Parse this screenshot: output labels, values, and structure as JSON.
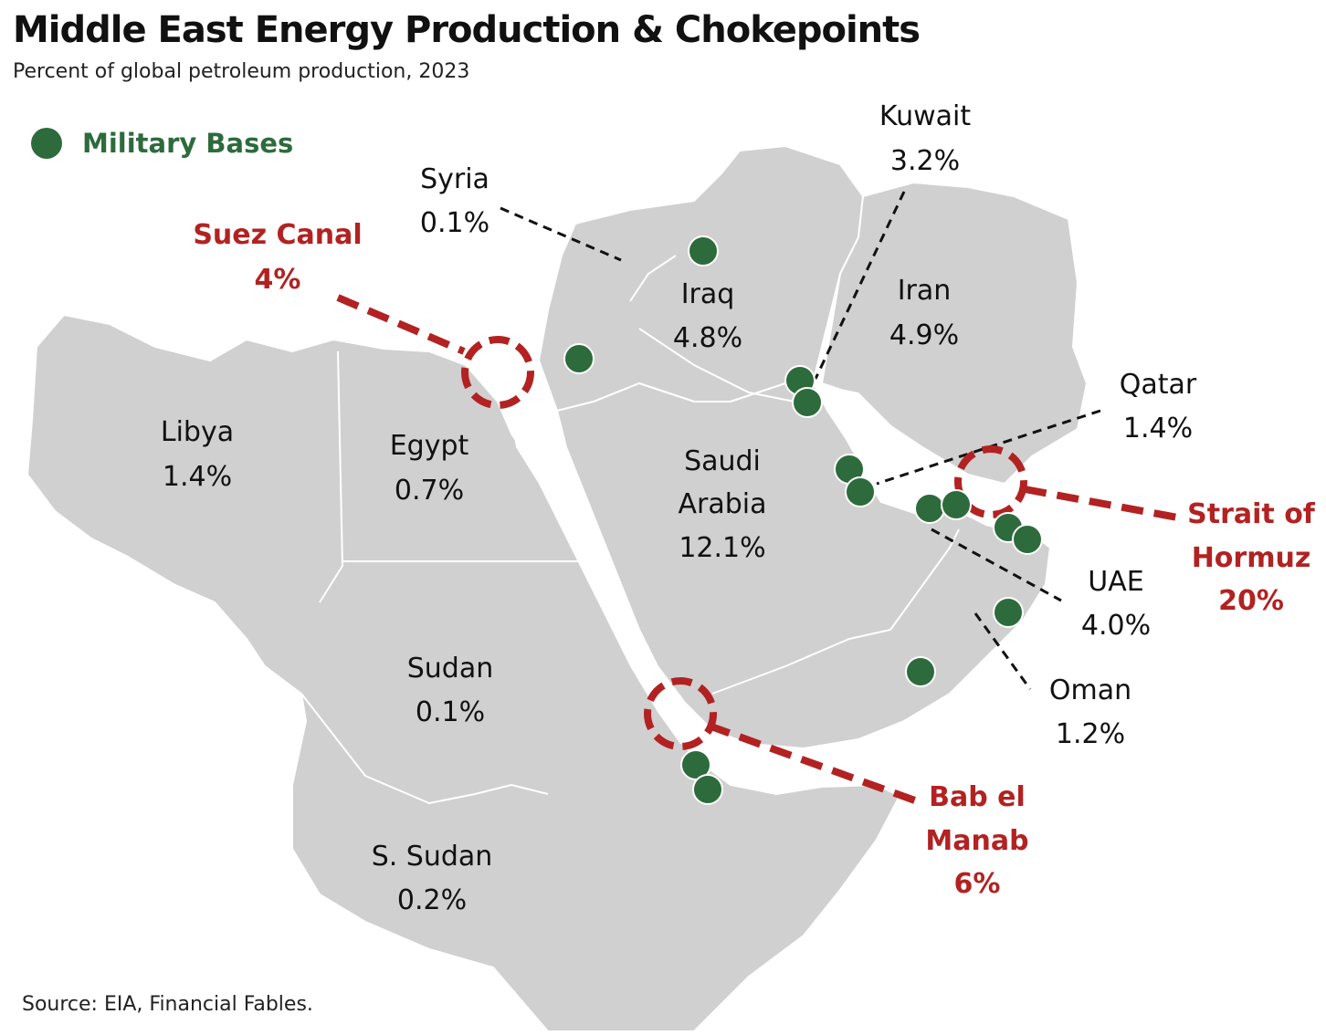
{
  "title": "Middle East Energy Production & Chokepoints",
  "subtitle": "Percent of global petroleum production, 2023",
  "source": "Source: EIA, Financial Fables.",
  "legend": {
    "label": "Military Bases",
    "color": "#2d6b3c"
  },
  "colors": {
    "land": "#d0d0d0",
    "border": "#ffffff",
    "chokepoint": "#b22222",
    "base": "#2d6b3c",
    "leader": "#111111"
  },
  "countries": {
    "libya": {
      "name": "Libya",
      "value": "1.4%"
    },
    "egypt": {
      "name": "Egypt",
      "value": "0.7%"
    },
    "sudan": {
      "name": "Sudan",
      "value": "0.1%"
    },
    "ssudan": {
      "name": "S. Sudan",
      "value": "0.2%"
    },
    "syria": {
      "name": "Syria",
      "value": "0.1%"
    },
    "iraq": {
      "name": "Iraq",
      "value": "4.8%"
    },
    "iran": {
      "name": "Iran",
      "value": "4.9%"
    },
    "kuwait": {
      "name": "Kuwait",
      "value": "3.2%"
    },
    "saudi": {
      "name1": "Saudi",
      "name2": "Arabia",
      "value": "12.1%"
    },
    "qatar": {
      "name": "Qatar",
      "value": "1.4%"
    },
    "uae": {
      "name": "UAE",
      "value": "4.0%"
    },
    "oman": {
      "name": "Oman",
      "value": "1.2%"
    }
  },
  "chokepoints": {
    "suez": {
      "name": "Suez Canal",
      "value": "4%"
    },
    "hormuz": {
      "name1": "Strait of",
      "name2": "Hormuz",
      "value": "20%"
    },
    "bab": {
      "name1": "Bab el",
      "name2": "Manab",
      "value": "6%"
    }
  }
}
